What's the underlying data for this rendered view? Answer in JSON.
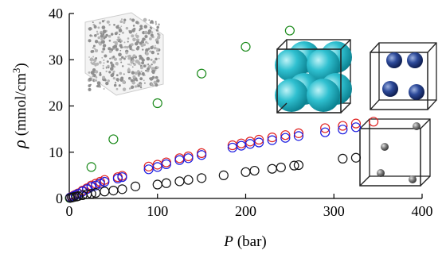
{
  "chart_data": {
    "type": "scatter",
    "xlabel": "P (bar)",
    "ylabel": "ρ (mmol/cm³)",
    "xlabel_var": "P",
    "xlabel_unit": "(bar)",
    "ylabel_var": "ρ",
    "ylabel_unit": "(mmol/cm",
    "ylabel_sup": "3",
    "ylabel_close": ")",
    "xlim": [
      0,
      400
    ],
    "ylim": [
      0,
      40
    ],
    "x_ticks": [
      0,
      100,
      200,
      300,
      400
    ],
    "y_ticks": [
      0,
      10,
      20,
      30,
      40
    ],
    "x_tick_labels": [
      "0",
      "100",
      "200",
      "300",
      "400"
    ],
    "y_tick_labels": [
      "0",
      "10",
      "20",
      "30",
      "40"
    ],
    "grid": false,
    "marker": "open-circle",
    "insets": [
      "disordered-cube-structure",
      "large-sphere-cubic-cell",
      "medium-sphere-cubic-cell",
      "small-sphere-cubic-cell"
    ],
    "series": [
      {
        "color": "#1a8a1a",
        "points": [
          [
            0.5,
            0.1
          ],
          [
            25,
            6.8
          ],
          [
            50,
            12.8
          ],
          [
            100,
            20.6
          ],
          [
            150,
            27.0
          ],
          [
            200,
            32.8
          ],
          [
            250,
            36.3
          ]
        ]
      },
      {
        "color": "#e02020",
        "points": [
          [
            1,
            0.2
          ],
          [
            3,
            0.4
          ],
          [
            5,
            0.6
          ],
          [
            7,
            0.8
          ],
          [
            10,
            1.1
          ],
          [
            15,
            1.7
          ],
          [
            20,
            2.2
          ],
          [
            25,
            2.8
          ],
          [
            30,
            3.2
          ],
          [
            35,
            3.6
          ],
          [
            40,
            4.0
          ],
          [
            55,
            4.6
          ],
          [
            60,
            4.9
          ],
          [
            90,
            6.9
          ],
          [
            100,
            7.3
          ],
          [
            110,
            7.8
          ],
          [
            125,
            8.7
          ],
          [
            135,
            9.1
          ],
          [
            150,
            9.8
          ],
          [
            185,
            11.5
          ],
          [
            195,
            11.9
          ],
          [
            205,
            12.3
          ],
          [
            215,
            12.7
          ],
          [
            230,
            13.2
          ],
          [
            245,
            13.7
          ],
          [
            260,
            14.1
          ],
          [
            290,
            15.2
          ],
          [
            310,
            15.7
          ],
          [
            325,
            16.2
          ],
          [
            345,
            16.6
          ]
        ]
      },
      {
        "color": "#1a1ae0",
        "points": [
          [
            1,
            0.2
          ],
          [
            3,
            0.3
          ],
          [
            5,
            0.5
          ],
          [
            7,
            0.7
          ],
          [
            10,
            1.0
          ],
          [
            15,
            1.5
          ],
          [
            20,
            2.0
          ],
          [
            25,
            2.5
          ],
          [
            30,
            2.8
          ],
          [
            35,
            3.2
          ],
          [
            40,
            3.6
          ],
          [
            55,
            4.3
          ],
          [
            60,
            4.6
          ],
          [
            90,
            6.3
          ],
          [
            100,
            6.8
          ],
          [
            110,
            7.4
          ],
          [
            125,
            8.3
          ],
          [
            135,
            8.7
          ],
          [
            150,
            9.4
          ],
          [
            185,
            11.0
          ],
          [
            195,
            11.4
          ],
          [
            205,
            11.8
          ],
          [
            215,
            12.1
          ],
          [
            230,
            12.6
          ],
          [
            245,
            13.1
          ],
          [
            260,
            13.5
          ],
          [
            290,
            14.3
          ],
          [
            310,
            14.9
          ],
          [
            325,
            15.4
          ]
        ]
      },
      {
        "color": "#111111",
        "points": [
          [
            1,
            0.1
          ],
          [
            3,
            0.2
          ],
          [
            5,
            0.3
          ],
          [
            8,
            0.4
          ],
          [
            10,
            0.5
          ],
          [
            15,
            0.7
          ],
          [
            20,
            0.9
          ],
          [
            25,
            1.0
          ],
          [
            30,
            1.2
          ],
          [
            40,
            1.5
          ],
          [
            50,
            1.7
          ],
          [
            60,
            2.0
          ],
          [
            75,
            2.6
          ],
          [
            100,
            3.0
          ],
          [
            110,
            3.3
          ],
          [
            125,
            3.7
          ],
          [
            135,
            4.0
          ],
          [
            150,
            4.4
          ],
          [
            175,
            5.0
          ],
          [
            200,
            5.7
          ],
          [
            210,
            6.0
          ],
          [
            230,
            6.4
          ],
          [
            240,
            6.7
          ],
          [
            255,
            7.1
          ],
          [
            260,
            7.2
          ],
          [
            310,
            8.6
          ],
          [
            325,
            8.8
          ]
        ]
      }
    ]
  }
}
